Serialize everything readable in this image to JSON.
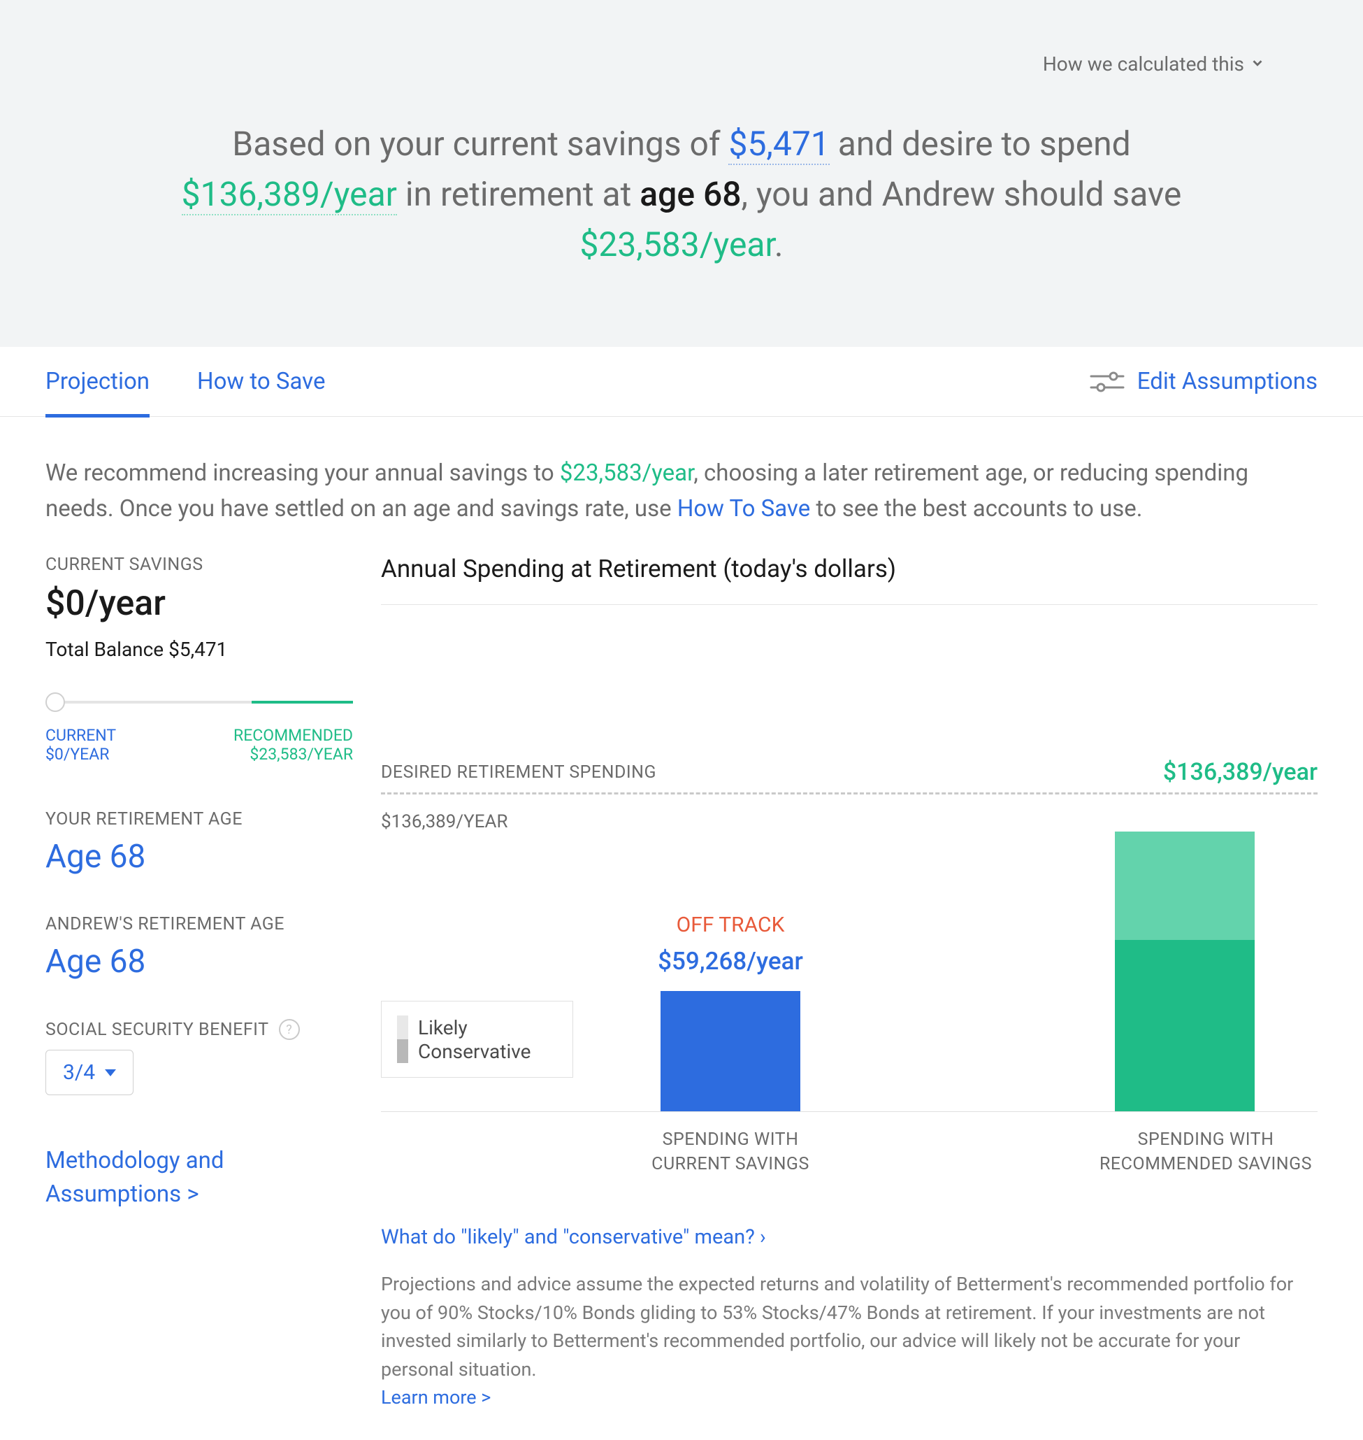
{
  "colors": {
    "blue": "#2d6cdf",
    "green": "#1fbc87",
    "green_light": "#63d3ac",
    "orange": "#e85a3a",
    "grey_text": "#6b6b6b",
    "bg_banner": "#f2f4f5",
    "legend_likely": "#e8e8e8",
    "legend_conservative": "#b8b8b8"
  },
  "header": {
    "calc_link": "How we calculated this",
    "summary": {
      "prefix": "Based on your current savings of ",
      "current_savings": "$5,471",
      "mid1": " and desire to spend ",
      "desired_spend": "$136,389/year",
      "mid2": " in retirement at ",
      "age_text": "age 68",
      "mid3": ", you and Andrew should save ",
      "should_save": "$23,583/year",
      "suffix": "."
    }
  },
  "tabs": {
    "projection": "Projection",
    "how_to_save": "How to Save",
    "edit_assumptions": "Edit Assumptions"
  },
  "recommendation": {
    "pre": "We recommend increasing your annual savings to ",
    "amount": "$23,583/year",
    "mid": ", choosing a later retirement age, or reducing spending needs. Once you have settled on an age and savings rate, use ",
    "link": "How To Save",
    "post": " to see the best accounts to use."
  },
  "left": {
    "current_savings_label": "CURRENT SAVINGS",
    "current_savings_value": "$0/year",
    "total_balance_label": "Total Balance ",
    "total_balance_value": "$5,471",
    "slider": {
      "current_label": "CURRENT",
      "current_value": "$0/YEAR",
      "recommended_label": "RECOMMENDED",
      "recommended_value": "$23,583/YEAR",
      "thumb_position_pct": 0,
      "recommended_fill_pct": 33
    },
    "your_age_label": "YOUR RETIREMENT AGE",
    "your_age_value": "Age 68",
    "partner_age_label": "ANDREW'S RETIREMENT AGE",
    "partner_age_value": "Age 68",
    "ss_label": "SOCIAL SECURITY BENEFIT",
    "ss_value": "3/4",
    "methodology_link": "Methodology and Assumptions >"
  },
  "chart": {
    "title": "Annual Spending at Retirement (today's dollars)",
    "desired_label": "DESIRED RETIREMENT SPENDING",
    "desired_amount": "$136,389/year",
    "axis_label": "$136,389/YEAR",
    "legend": {
      "likely": "Likely",
      "conservative": "Conservative"
    },
    "bars": {
      "current": {
        "off_track": "OFF TRACK",
        "amount": "$59,268/year",
        "likely_h": 172,
        "likely_color": "#2d6cdf",
        "conservative_h": 0,
        "conservative_color": "#6a9ae8",
        "x_label_l1": "SPENDING WITH",
        "x_label_l2": "CURRENT SAVINGS"
      },
      "recommended": {
        "likely_h": 245,
        "likely_color": "#1fbc87",
        "conservative_h": 155,
        "conservative_color": "#63d3ac",
        "x_label_l1": "SPENDING WITH",
        "x_label_l2": "RECOMMENDED SAVINGS"
      }
    },
    "faq_link": "What do \"likely\" and \"conservative\" mean? ›",
    "disclaimer": "Projections and advice assume the expected returns and volatility of Betterment's recommended portfolio for you of 90% Stocks/10% Bonds gliding to 53% Stocks/47% Bonds at retirement. If your investments are not invested similarly to Betterment's recommended portfolio, our advice will likely not be accurate for your personal situation.",
    "learn_more": "Learn more >"
  }
}
